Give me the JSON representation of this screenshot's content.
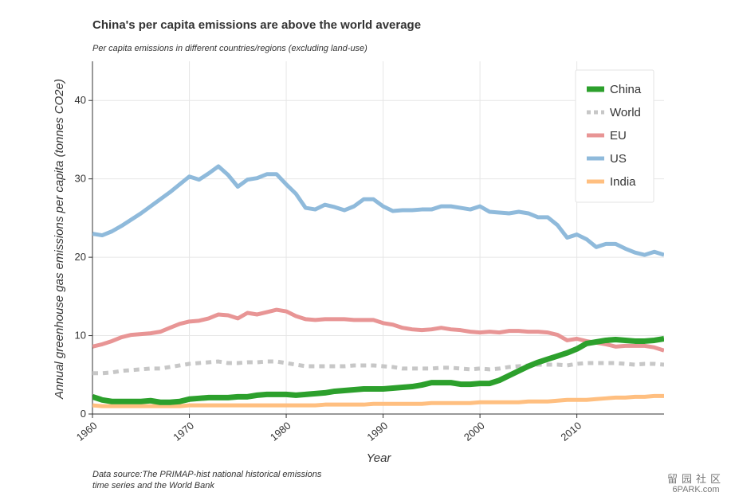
{
  "title": "China's per capita emissions are above the world average",
  "subtitle": "Per capita emissions in different countries/regions (excluding land-use)",
  "source": "Data source:The PRIMAP-hist national historical emissions time series and the World Bank",
  "watermark": {
    "line1": "留园社区",
    "line2": "6PARK.com"
  },
  "chart_data": {
    "type": "line",
    "xlabel": "Year",
    "ylabel": "Annual greenhouse gas emissions per capita (tonnes CO2e)",
    "xlim": [
      1960,
      2019
    ],
    "ylim": [
      0,
      45
    ],
    "xticks": [
      1960,
      1970,
      1980,
      1990,
      2000,
      2010
    ],
    "yticks": [
      0,
      10,
      20,
      30,
      40
    ],
    "grid": true,
    "legend_position": "top-right",
    "x": [
      1960,
      1961,
      1962,
      1963,
      1964,
      1965,
      1966,
      1967,
      1968,
      1969,
      1970,
      1971,
      1972,
      1973,
      1974,
      1975,
      1976,
      1977,
      1978,
      1979,
      1980,
      1981,
      1982,
      1983,
      1984,
      1985,
      1986,
      1987,
      1988,
      1989,
      1990,
      1991,
      1992,
      1993,
      1994,
      1995,
      1996,
      1997,
      1998,
      1999,
      2000,
      2001,
      2002,
      2003,
      2004,
      2005,
      2006,
      2007,
      2008,
      2009,
      2010,
      2011,
      2012,
      2013,
      2014,
      2015,
      2016,
      2017,
      2018,
      2019
    ],
    "series": [
      {
        "name": "China",
        "color": "#2ca02c",
        "width": 7,
        "dash": "",
        "values": [
          2.2,
          1.8,
          1.6,
          1.6,
          1.6,
          1.6,
          1.7,
          1.5,
          1.5,
          1.6,
          1.9,
          2.0,
          2.1,
          2.1,
          2.1,
          2.2,
          2.2,
          2.4,
          2.5,
          2.5,
          2.5,
          2.4,
          2.5,
          2.6,
          2.7,
          2.9,
          3.0,
          3.1,
          3.2,
          3.2,
          3.2,
          3.3,
          3.4,
          3.5,
          3.7,
          4.0,
          4.0,
          4.0,
          3.8,
          3.8,
          3.9,
          3.9,
          4.3,
          4.9,
          5.5,
          6.1,
          6.6,
          7.0,
          7.4,
          7.8,
          8.3,
          9.0,
          9.2,
          9.4,
          9.5,
          9.4,
          9.3,
          9.3,
          9.4,
          9.6
        ]
      },
      {
        "name": "World",
        "color": "#c7c7c7",
        "width": 5,
        "dash": "7,6",
        "values": [
          5.2,
          5.2,
          5.3,
          5.5,
          5.6,
          5.7,
          5.8,
          5.8,
          6.0,
          6.2,
          6.4,
          6.5,
          6.6,
          6.7,
          6.5,
          6.5,
          6.6,
          6.6,
          6.7,
          6.7,
          6.5,
          6.3,
          6.1,
          6.1,
          6.1,
          6.1,
          6.1,
          6.2,
          6.2,
          6.2,
          6.1,
          6.0,
          5.8,
          5.8,
          5.8,
          5.8,
          5.9,
          5.9,
          5.8,
          5.7,
          5.8,
          5.7,
          5.8,
          6.0,
          6.1,
          6.2,
          6.3,
          6.3,
          6.3,
          6.2,
          6.4,
          6.5,
          6.5,
          6.5,
          6.5,
          6.4,
          6.3,
          6.4,
          6.4,
          6.3
        ]
      },
      {
        "name": "EU",
        "color": "#e89595",
        "width": 5,
        "dash": "",
        "values": [
          8.6,
          8.9,
          9.3,
          9.8,
          10.1,
          10.2,
          10.3,
          10.5,
          11.0,
          11.5,
          11.8,
          11.9,
          12.2,
          12.7,
          12.6,
          12.2,
          12.9,
          12.7,
          13.0,
          13.3,
          13.1,
          12.5,
          12.1,
          12.0,
          12.1,
          12.1,
          12.1,
          12.0,
          12.0,
          12.0,
          11.6,
          11.4,
          11.0,
          10.8,
          10.7,
          10.8,
          11.0,
          10.8,
          10.7,
          10.5,
          10.4,
          10.5,
          10.4,
          10.6,
          10.6,
          10.5,
          10.5,
          10.4,
          10.1,
          9.4,
          9.6,
          9.3,
          9.1,
          8.9,
          8.6,
          8.7,
          8.7,
          8.7,
          8.5,
          8.1
        ]
      },
      {
        "name": "US",
        "color": "#8fbadb",
        "width": 5,
        "dash": "",
        "values": [
          23.0,
          22.8,
          23.3,
          24.0,
          24.8,
          25.6,
          26.5,
          27.4,
          28.3,
          29.3,
          30.3,
          29.9,
          30.7,
          31.6,
          30.5,
          29.0,
          29.9,
          30.1,
          30.6,
          30.6,
          29.3,
          28.1,
          26.3,
          26.1,
          26.7,
          26.4,
          26.0,
          26.5,
          27.4,
          27.4,
          26.5,
          25.9,
          26.0,
          26.0,
          26.1,
          26.1,
          26.5,
          26.5,
          26.3,
          26.1,
          26.5,
          25.8,
          25.7,
          25.6,
          25.8,
          25.6,
          25.1,
          25.1,
          24.1,
          22.5,
          22.9,
          22.3,
          21.3,
          21.7,
          21.7,
          21.1,
          20.6,
          20.3,
          20.7,
          20.3
        ]
      },
      {
        "name": "India",
        "color": "#ffbf80",
        "width": 5,
        "dash": "",
        "values": [
          1.1,
          1.0,
          1.0,
          1.0,
          1.0,
          1.0,
          1.0,
          1.0,
          1.0,
          1.0,
          1.1,
          1.1,
          1.1,
          1.1,
          1.1,
          1.1,
          1.1,
          1.1,
          1.1,
          1.1,
          1.1,
          1.1,
          1.1,
          1.1,
          1.2,
          1.2,
          1.2,
          1.2,
          1.2,
          1.3,
          1.3,
          1.3,
          1.3,
          1.3,
          1.3,
          1.4,
          1.4,
          1.4,
          1.4,
          1.4,
          1.5,
          1.5,
          1.5,
          1.5,
          1.5,
          1.6,
          1.6,
          1.6,
          1.7,
          1.8,
          1.8,
          1.8,
          1.9,
          2.0,
          2.1,
          2.1,
          2.2,
          2.2,
          2.3,
          2.3
        ]
      }
    ]
  }
}
